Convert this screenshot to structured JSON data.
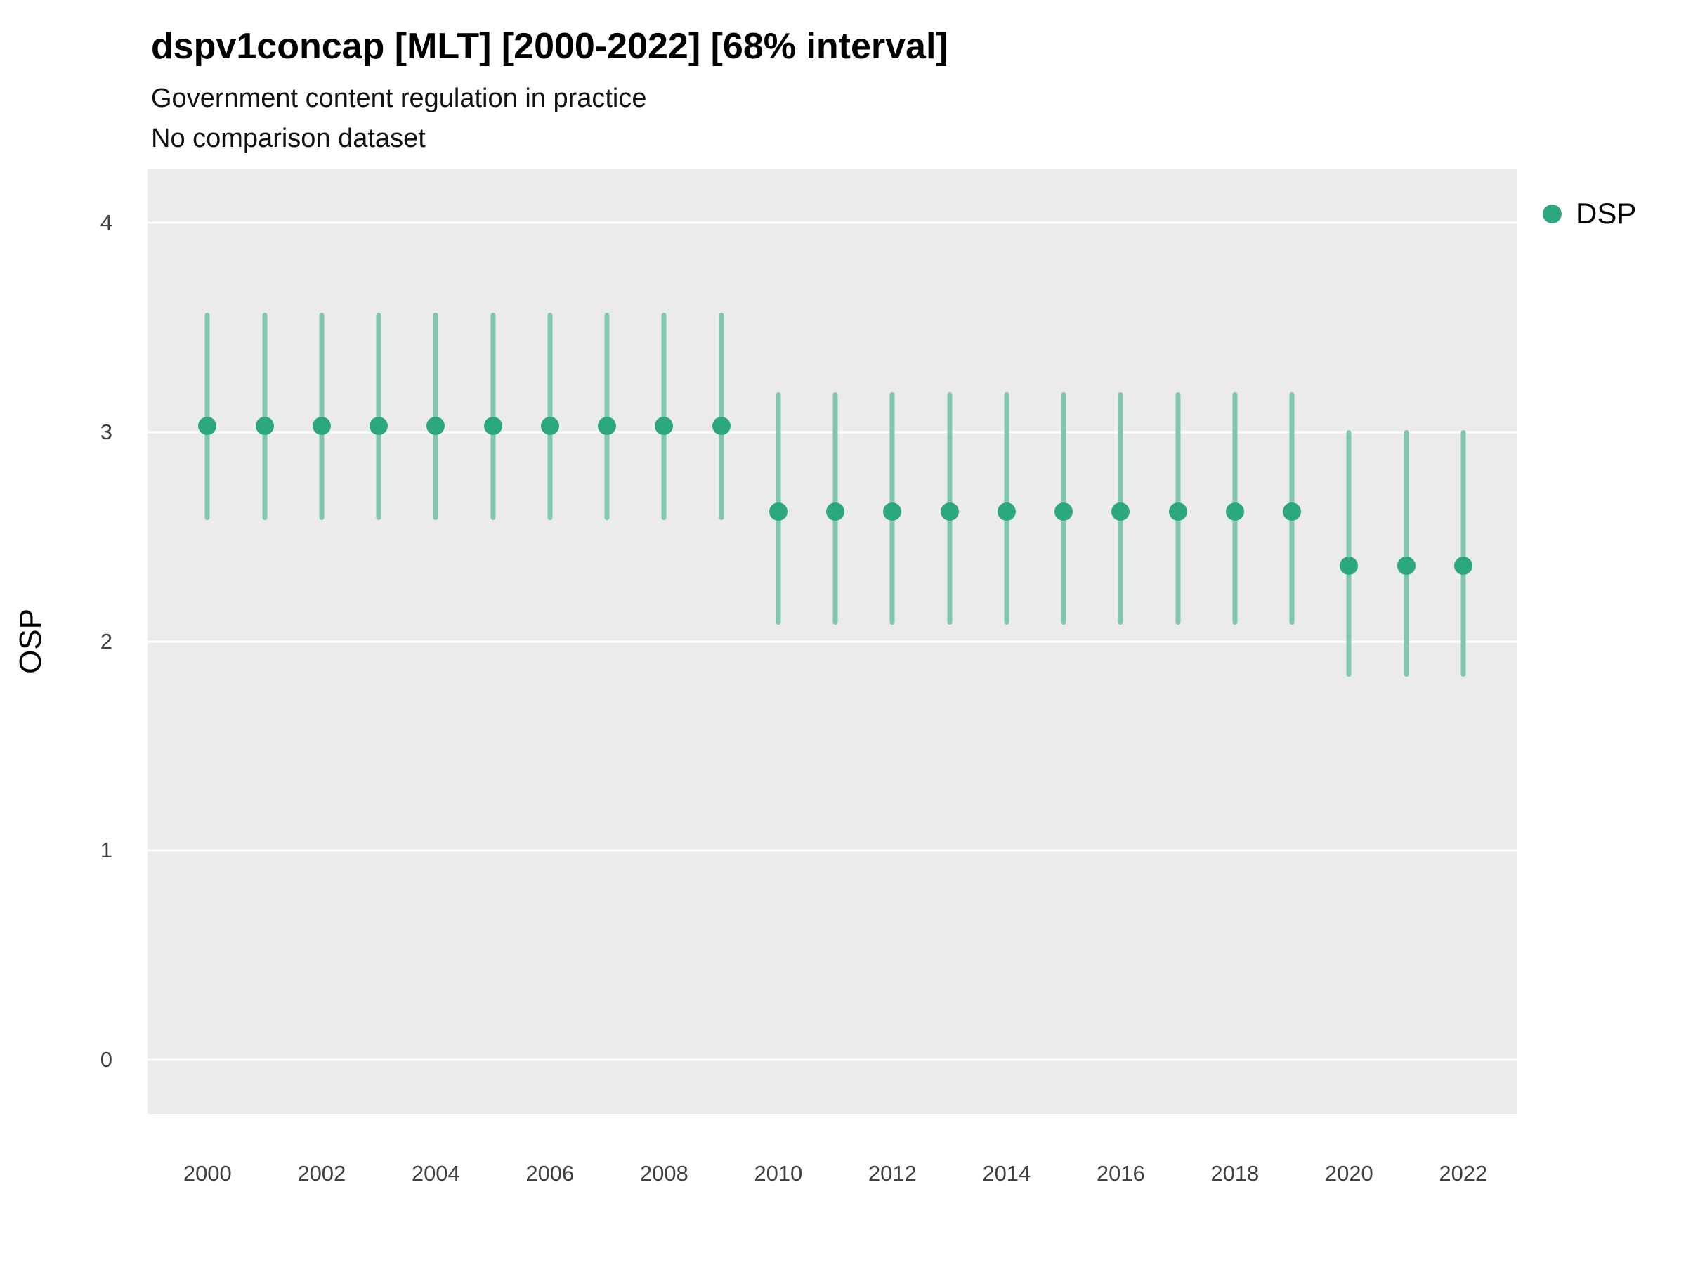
{
  "header": {
    "title": "dspv1concap [MLT] [2000-2022] [68% interval]",
    "subtitle": "Government content regulation in practice",
    "subtitle2": "No comparison dataset"
  },
  "legend": {
    "items": [
      {
        "label": "DSP",
        "color": "#2BA87E"
      }
    ]
  },
  "colors": {
    "panel_bg": "#EBEBEB",
    "gridline": "#FFFFFF",
    "point": "#2BA87E",
    "interval": "#81C6AF",
    "text": "#000000"
  },
  "chart_data": {
    "type": "scatter",
    "title": "dspv1concap [MLT] [2000-2022] [68% interval]",
    "subtitle": "Government content regulation in practice",
    "note": "No comparison dataset",
    "xlabel": "",
    "ylabel": "OSP",
    "xlim": [
      1998.95,
      2022.95
    ],
    "ylim": [
      -0.26,
      4.26
    ],
    "yticks": [
      0,
      1,
      2,
      3,
      4
    ],
    "xticks": [
      2000,
      2002,
      2004,
      2006,
      2008,
      2010,
      2012,
      2014,
      2016,
      2018,
      2020,
      2022
    ],
    "grid": "horizontal-major",
    "legend_position": "right",
    "interval_level": "68%",
    "series": [
      {
        "name": "DSP",
        "points": [
          {
            "x": 2000,
            "y": 3.03,
            "lo": 2.58,
            "hi": 3.57
          },
          {
            "x": 2001,
            "y": 3.03,
            "lo": 2.58,
            "hi": 3.57
          },
          {
            "x": 2002,
            "y": 3.03,
            "lo": 2.58,
            "hi": 3.57
          },
          {
            "x": 2003,
            "y": 3.03,
            "lo": 2.58,
            "hi": 3.57
          },
          {
            "x": 2004,
            "y": 3.03,
            "lo": 2.58,
            "hi": 3.57
          },
          {
            "x": 2005,
            "y": 3.03,
            "lo": 2.58,
            "hi": 3.57
          },
          {
            "x": 2006,
            "y": 3.03,
            "lo": 2.58,
            "hi": 3.57
          },
          {
            "x": 2007,
            "y": 3.03,
            "lo": 2.58,
            "hi": 3.57
          },
          {
            "x": 2008,
            "y": 3.03,
            "lo": 2.58,
            "hi": 3.57
          },
          {
            "x": 2009,
            "y": 3.03,
            "lo": 2.58,
            "hi": 3.57
          },
          {
            "x": 2010,
            "y": 2.62,
            "lo": 2.08,
            "hi": 3.19
          },
          {
            "x": 2011,
            "y": 2.62,
            "lo": 2.08,
            "hi": 3.19
          },
          {
            "x": 2012,
            "y": 2.62,
            "lo": 2.08,
            "hi": 3.19
          },
          {
            "x": 2013,
            "y": 2.62,
            "lo": 2.08,
            "hi": 3.19
          },
          {
            "x": 2014,
            "y": 2.62,
            "lo": 2.08,
            "hi": 3.19
          },
          {
            "x": 2015,
            "y": 2.62,
            "lo": 2.08,
            "hi": 3.19
          },
          {
            "x": 2016,
            "y": 2.62,
            "lo": 2.08,
            "hi": 3.19
          },
          {
            "x": 2017,
            "y": 2.62,
            "lo": 2.08,
            "hi": 3.19
          },
          {
            "x": 2018,
            "y": 2.62,
            "lo": 2.08,
            "hi": 3.19
          },
          {
            "x": 2019,
            "y": 2.62,
            "lo": 2.08,
            "hi": 3.19
          },
          {
            "x": 2020,
            "y": 2.36,
            "lo": 1.83,
            "hi": 3.01
          },
          {
            "x": 2021,
            "y": 2.36,
            "lo": 1.83,
            "hi": 3.01
          },
          {
            "x": 2022,
            "y": 2.36,
            "lo": 1.83,
            "hi": 3.01
          }
        ]
      }
    ]
  }
}
